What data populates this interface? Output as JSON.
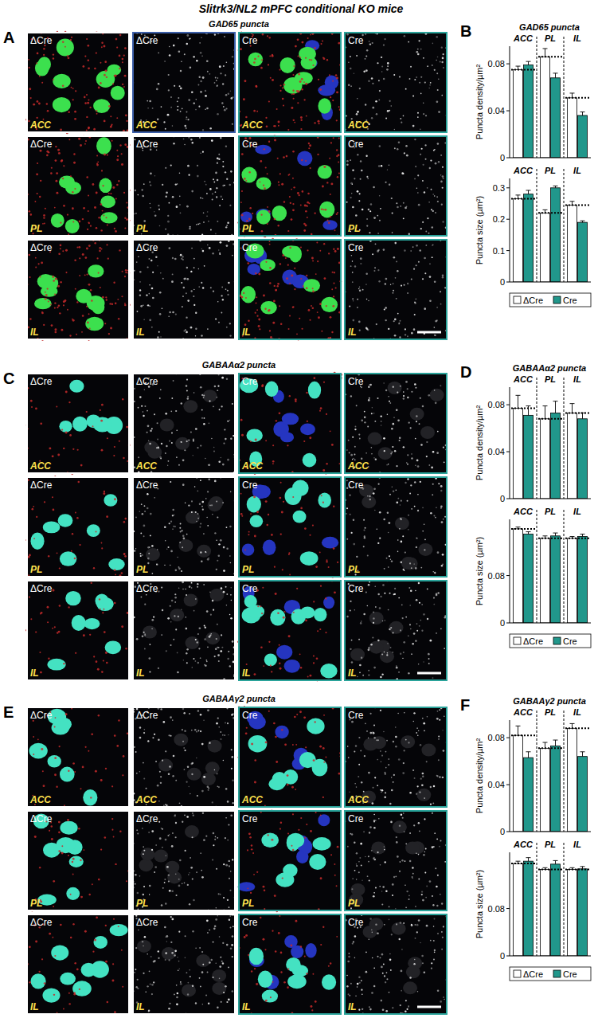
{
  "title": "Slitrk3/NL2 mPFC conditional KO mice",
  "image_panels": [
    {
      "label": "A",
      "title": "GAD65 puncta",
      "column_labels": [
        "ΔCre",
        "ΔCre",
        "Cre",
        "Cre"
      ],
      "row_labels": [
        "ACC",
        "PL",
        "IL"
      ]
    },
    {
      "label": "C",
      "title": "GABAAα2 puncta",
      "column_labels": [
        "ΔCre",
        "ΔCre",
        "Cre",
        "Cre"
      ],
      "row_labels": [
        "ACC",
        "PL",
        "IL"
      ]
    },
    {
      "label": "E",
      "title": "GABAAγ2 puncta",
      "column_labels": [
        "ΔCre",
        "ΔCre",
        "Cre",
        "Cre"
      ],
      "row_labels": [
        "ACC",
        "PL",
        "IL"
      ]
    }
  ],
  "chart_panel_labels": [
    "B",
    "D",
    "F"
  ],
  "chart_data": [
    {
      "type": "bar",
      "title": "GAD65 puncta",
      "y_label": "Puncta density/µm²",
      "categories": [
        "ACC",
        "PL",
        "IL"
      ],
      "series": [
        {
          "name": "ΔCre",
          "color": "#ffffff",
          "values": [
            0.075,
            0.086,
            0.051
          ],
          "errors": [
            0.003,
            0.007,
            0.004
          ]
        },
        {
          "name": "Cre",
          "color": "#21978b",
          "values": [
            0.079,
            0.068,
            0.036
          ],
          "errors": [
            0.003,
            0.004,
            0.003
          ]
        }
      ],
      "ylim": [
        0,
        0.095
      ],
      "yticks": [
        0,
        0.04,
        0.08
      ]
    },
    {
      "type": "bar",
      "y_label": "Puncta size (µm²)",
      "categories": [
        "ACC",
        "PL",
        "IL"
      ],
      "series": [
        {
          "name": "ΔCre",
          "color": "#ffffff",
          "values": [
            0.265,
            0.22,
            0.245
          ],
          "errors": [
            0.012,
            0.01,
            0.012
          ]
        },
        {
          "name": "Cre",
          "color": "#21978b",
          "values": [
            0.28,
            0.3,
            0.19
          ],
          "errors": [
            0.012,
            0.006,
            0.005
          ]
        }
      ],
      "ylim": [
        0,
        0.33
      ],
      "yticks": [
        0,
        0.1,
        0.2,
        0.3
      ],
      "legend": "bottom"
    },
    {
      "type": "bar",
      "title": "GABAAα2 puncta",
      "y_label": "Puncta density/µm²",
      "categories": [
        "ACC",
        "PL",
        "IL"
      ],
      "series": [
        {
          "name": "ΔCre",
          "color": "#ffffff",
          "values": [
            0.077,
            0.068,
            0.073
          ],
          "errors": [
            0.011,
            0.011,
            0.008
          ]
        },
        {
          "name": "Cre",
          "color": "#21978b",
          "values": [
            0.071,
            0.073,
            0.068
          ],
          "errors": [
            0.008,
            0.01,
            0.005
          ]
        }
      ],
      "ylim": [
        0,
        0.095
      ],
      "yticks": [
        0,
        0.04,
        0.08
      ]
    },
    {
      "type": "bar",
      "y_label": "Puncta size (µm²)",
      "categories": [
        "ACC",
        "PL",
        "IL"
      ],
      "series": [
        {
          "name": "ΔCre",
          "color": "#ffffff",
          "values": [
            0.159,
            0.143,
            0.143
          ],
          "errors": [
            0.003,
            0.004,
            0.003
          ]
        },
        {
          "name": "Cre",
          "color": "#21978b",
          "values": [
            0.15,
            0.147,
            0.146
          ],
          "errors": [
            0.004,
            0.005,
            0.004
          ]
        }
      ],
      "ylim": [
        0,
        0.175
      ],
      "yticks": [
        0,
        0.08
      ],
      "legend": "bottom"
    },
    {
      "type": "bar",
      "title": "GABAAγ2 puncta",
      "y_label": "Puncta density/µm²",
      "categories": [
        "ACC",
        "PL",
        "IL"
      ],
      "series": [
        {
          "name": "ΔCre",
          "color": "#ffffff",
          "values": [
            0.082,
            0.071,
            0.088
          ],
          "errors": [
            0.008,
            0.005,
            0.004
          ]
        },
        {
          "name": "Cre",
          "color": "#21978b",
          "values": [
            0.063,
            0.073,
            0.064
          ],
          "errors": [
            0.005,
            0.005,
            0.004
          ]
        }
      ],
      "ylim": [
        0,
        0.095
      ],
      "yticks": [
        0,
        0.04,
        0.08
      ]
    },
    {
      "type": "bar",
      "y_label": "Puncta size (µm²)",
      "categories": [
        "ACC",
        "PL",
        "IL"
      ],
      "series": [
        {
          "name": "ΔCre",
          "color": "#ffffff",
          "values": [
            0.156,
            0.146,
            0.146
          ],
          "errors": [
            0.004,
            0.003,
            0.003
          ]
        },
        {
          "name": "Cre",
          "color": "#21978b",
          "values": [
            0.16,
            0.155,
            0.147
          ],
          "errors": [
            0.006,
            0.006,
            0.004
          ]
        }
      ],
      "ylim": [
        0,
        0.175
      ],
      "yticks": [
        0,
        0.08
      ],
      "legend": "bottom"
    }
  ]
}
